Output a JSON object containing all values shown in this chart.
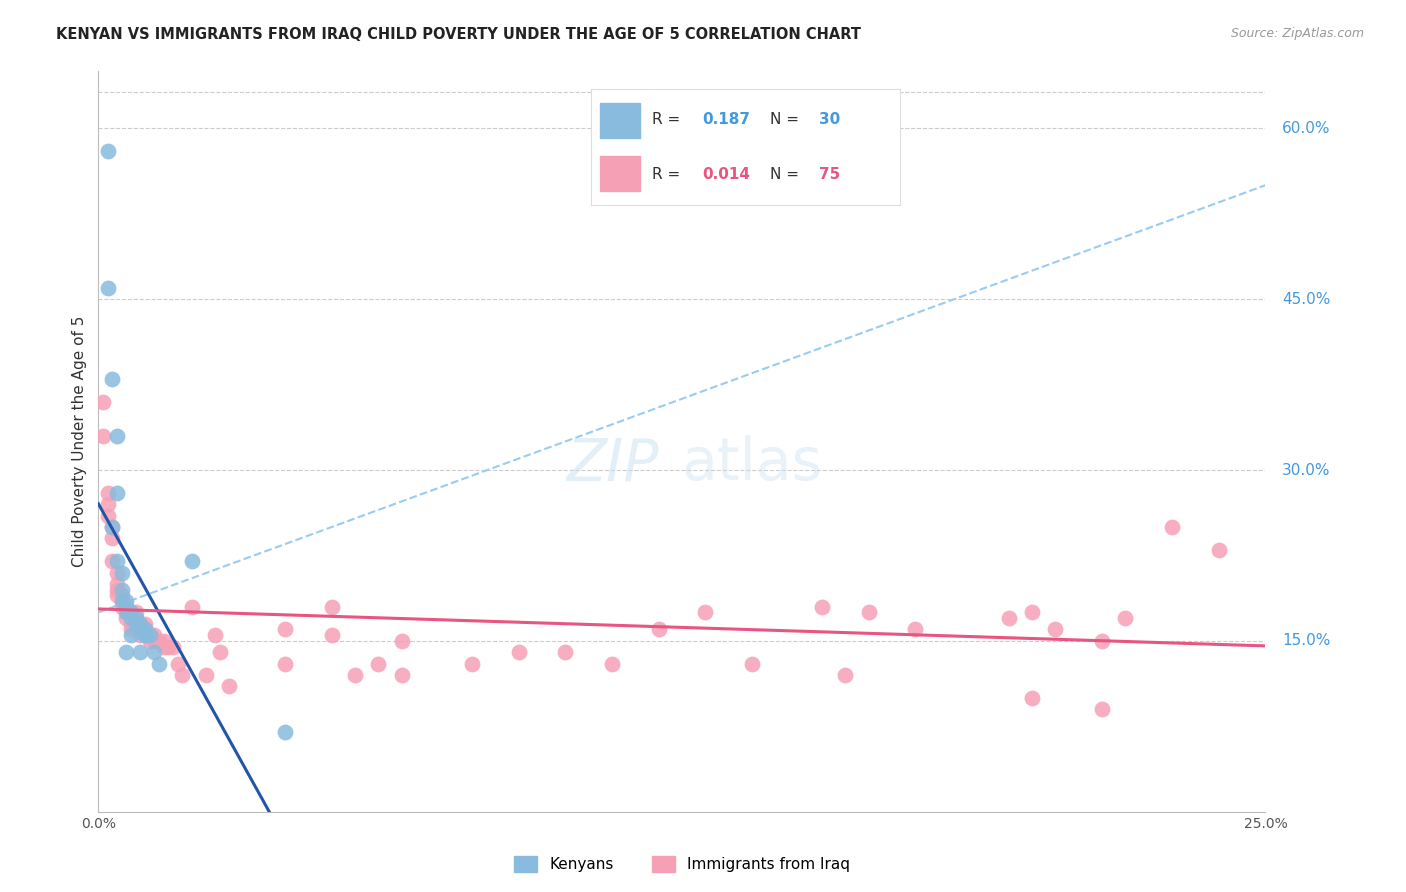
{
  "title": "KENYAN VS IMMIGRANTS FROM IRAQ CHILD POVERTY UNDER THE AGE OF 5 CORRELATION CHART",
  "source": "Source: ZipAtlas.com",
  "ylabel": "Child Poverty Under the Age of 5",
  "xlim": [
    0.0,
    0.25
  ],
  "ylim": [
    0.0,
    0.65
  ],
  "y_tick_values": [
    0.15,
    0.3,
    0.45,
    0.6
  ],
  "y_tick_labels": [
    "15.0%",
    "30.0%",
    "45.0%",
    "60.0%"
  ],
  "kenyan_R": "0.187",
  "kenyan_N": "30",
  "iraq_R": "0.014",
  "iraq_N": "75",
  "kenyan_color": "#88BBDD",
  "iraq_color": "#F5A0B5",
  "kenyan_line_color": "#2255AA",
  "iraq_line_color": "#E85580",
  "dashed_line_color": "#99CCEE",
  "bg_color": "#FFFFFF",
  "grid_color": "#CCCCCC",
  "right_label_color": "#4499DD",
  "kenyan_x": [
    0.002,
    0.002,
    0.003,
    0.004,
    0.004,
    0.004,
    0.005,
    0.005,
    0.005,
    0.006,
    0.006,
    0.006,
    0.007,
    0.007,
    0.008,
    0.008,
    0.009,
    0.009,
    0.01,
    0.01,
    0.011,
    0.012,
    0.013,
    0.02,
    0.04,
    0.003,
    0.006,
    0.007,
    0.009,
    0.01
  ],
  "kenyan_y": [
    0.58,
    0.46,
    0.38,
    0.33,
    0.28,
    0.22,
    0.21,
    0.195,
    0.185,
    0.185,
    0.18,
    0.175,
    0.175,
    0.17,
    0.17,
    0.165,
    0.165,
    0.16,
    0.16,
    0.155,
    0.155,
    0.14,
    0.13,
    0.22,
    0.07,
    0.25,
    0.14,
    0.155,
    0.14,
    0.155
  ],
  "iraq_x": [
    0.001,
    0.001,
    0.002,
    0.002,
    0.002,
    0.003,
    0.003,
    0.003,
    0.004,
    0.004,
    0.004,
    0.004,
    0.005,
    0.005,
    0.005,
    0.006,
    0.006,
    0.006,
    0.007,
    0.007,
    0.007,
    0.007,
    0.008,
    0.008,
    0.008,
    0.009,
    0.009,
    0.009,
    0.01,
    0.01,
    0.01,
    0.011,
    0.011,
    0.012,
    0.012,
    0.013,
    0.014,
    0.014,
    0.015,
    0.016,
    0.017,
    0.018,
    0.02,
    0.023,
    0.026,
    0.028,
    0.04,
    0.05,
    0.055,
    0.06,
    0.065,
    0.08,
    0.1,
    0.12,
    0.13,
    0.155,
    0.165,
    0.175,
    0.195,
    0.2,
    0.205,
    0.215,
    0.22,
    0.23,
    0.24,
    0.2,
    0.215,
    0.025,
    0.04,
    0.05,
    0.065,
    0.09,
    0.11,
    0.14,
    0.16
  ],
  "iraq_y": [
    0.36,
    0.33,
    0.28,
    0.27,
    0.26,
    0.25,
    0.24,
    0.22,
    0.21,
    0.2,
    0.195,
    0.19,
    0.19,
    0.185,
    0.18,
    0.18,
    0.175,
    0.17,
    0.175,
    0.17,
    0.165,
    0.16,
    0.175,
    0.17,
    0.165,
    0.165,
    0.16,
    0.155,
    0.165,
    0.16,
    0.155,
    0.155,
    0.15,
    0.155,
    0.15,
    0.15,
    0.15,
    0.145,
    0.145,
    0.145,
    0.13,
    0.12,
    0.18,
    0.12,
    0.14,
    0.11,
    0.13,
    0.18,
    0.12,
    0.13,
    0.15,
    0.13,
    0.14,
    0.16,
    0.175,
    0.18,
    0.175,
    0.16,
    0.17,
    0.175,
    0.16,
    0.15,
    0.17,
    0.25,
    0.23,
    0.1,
    0.09,
    0.155,
    0.16,
    0.155,
    0.12,
    0.14,
    0.13,
    0.13,
    0.12
  ]
}
